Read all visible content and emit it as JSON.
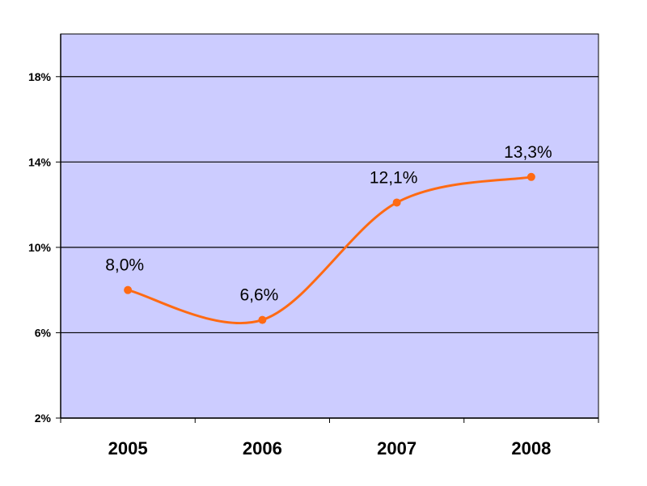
{
  "chart_data": {
    "type": "line",
    "categories": [
      "2005",
      "2006",
      "2007",
      "2008"
    ],
    "series": [
      {
        "values": [
          8.0,
          6.6,
          12.1,
          13.3
        ],
        "data_labels": [
          "8,0%",
          "6,6%",
          "12,1%",
          "13,3%"
        ]
      }
    ],
    "y_ticks": [
      2,
      6,
      10,
      14,
      18
    ],
    "y_tick_labels": [
      "2%",
      "6%",
      "10%",
      "14%",
      "18%"
    ],
    "ylim": [
      2,
      20
    ],
    "smooth_line": true,
    "grid": "horizontal",
    "legend": "none",
    "title": "",
    "xlabel": "",
    "ylabel": ""
  },
  "colors": {
    "plot_background": "#ccccff",
    "line": "#ff6a13",
    "gridlines": "#000000",
    "axis": "#000000"
  }
}
